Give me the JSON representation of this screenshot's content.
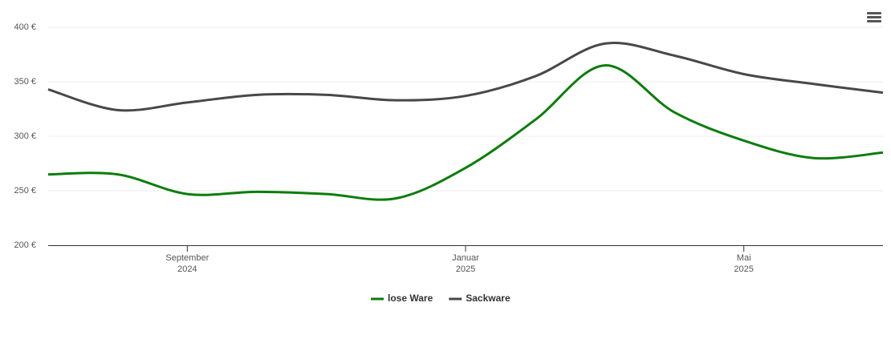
{
  "chart_data": {
    "type": "line",
    "x": [
      "2024-07",
      "2024-08",
      "2024-09",
      "2024-10",
      "2024-11",
      "2024-12",
      "2025-01",
      "2025-02",
      "2025-03",
      "2025-04",
      "2025-05",
      "2025-06",
      "2025-07"
    ],
    "xlim": [
      "2024-07",
      "2025-07"
    ],
    "xticks": [
      {
        "value": "2024-09",
        "label": "September",
        "sublabel": "2024"
      },
      {
        "value": "2025-01",
        "label": "Januar",
        "sublabel": "2025"
      },
      {
        "value": "2025-05",
        "label": "Mai",
        "sublabel": "2025"
      }
    ],
    "ylim": [
      200,
      400
    ],
    "yticks": [
      {
        "value": 200,
        "label": "200 €"
      },
      {
        "value": 250,
        "label": "250 €"
      },
      {
        "value": 300,
        "label": "300 €"
      },
      {
        "value": 350,
        "label": "350 €"
      },
      {
        "value": 400,
        "label": "400 €"
      }
    ],
    "grid": true,
    "legend": "bottom",
    "series": [
      {
        "name": "lose Ware",
        "color": "#0a7d0a",
        "values": [
          265,
          265,
          247,
          249,
          247,
          243,
          271,
          315,
          365,
          322,
          296,
          280,
          285
        ]
      },
      {
        "name": "Sackware",
        "color": "#48484a",
        "values": [
          343,
          324,
          331,
          338,
          338,
          333,
          337,
          355,
          385,
          374,
          357,
          348,
          340
        ]
      }
    ]
  }
}
